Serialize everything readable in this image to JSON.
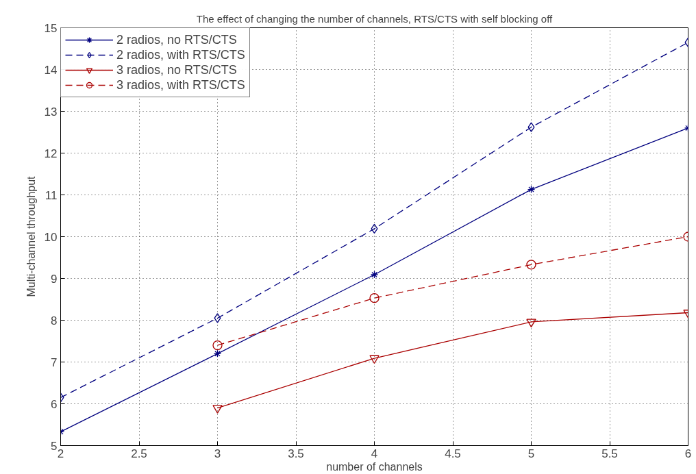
{
  "chart_data": {
    "type": "line",
    "title": "The effect of changing the number of channels, RTS/CTS with self blocking off",
    "xlabel": "number of channels",
    "ylabel": "Multi-channel throughput",
    "xlim": [
      2,
      6
    ],
    "xticks": [
      2,
      2.5,
      3,
      3.5,
      4,
      4.5,
      5,
      5.5,
      6
    ],
    "ylim": [
      5,
      15
    ],
    "yticks": [
      5,
      6,
      7,
      8,
      9,
      10,
      11,
      12,
      13,
      14,
      15
    ],
    "grid": true,
    "legend": "top left",
    "series": [
      {
        "name": "2 radios, no RTS/CTS",
        "color": "#00007f",
        "marker": "cross",
        "line_style": "solid",
        "x": [
          2,
          3,
          4,
          5,
          6
        ],
        "values": [
          5.33,
          7.2,
          9.09,
          11.13,
          12.6
        ]
      },
      {
        "name": "2 radios, with RTS/CTS",
        "color": "#00007f",
        "marker": "diamond",
        "line_style": "dashed",
        "x": [
          2,
          3,
          4,
          5,
          6
        ],
        "values": [
          6.15,
          8.05,
          10.19,
          12.62,
          14.65
        ]
      },
      {
        "name": "3 radios, no RTS/CTS",
        "color": "#aa0000",
        "marker": "triangle",
        "line_style": "solid",
        "x": [
          3,
          4,
          5,
          6
        ],
        "values": [
          5.9,
          7.09,
          7.96,
          8.18
        ]
      },
      {
        "name": "3 radios, with RTS/CTS",
        "color": "#aa0000",
        "marker": "circle",
        "line_style": "dashed",
        "x": [
          3,
          4,
          5,
          6
        ],
        "values": [
          7.4,
          8.53,
          9.33,
          10.0
        ]
      }
    ]
  }
}
